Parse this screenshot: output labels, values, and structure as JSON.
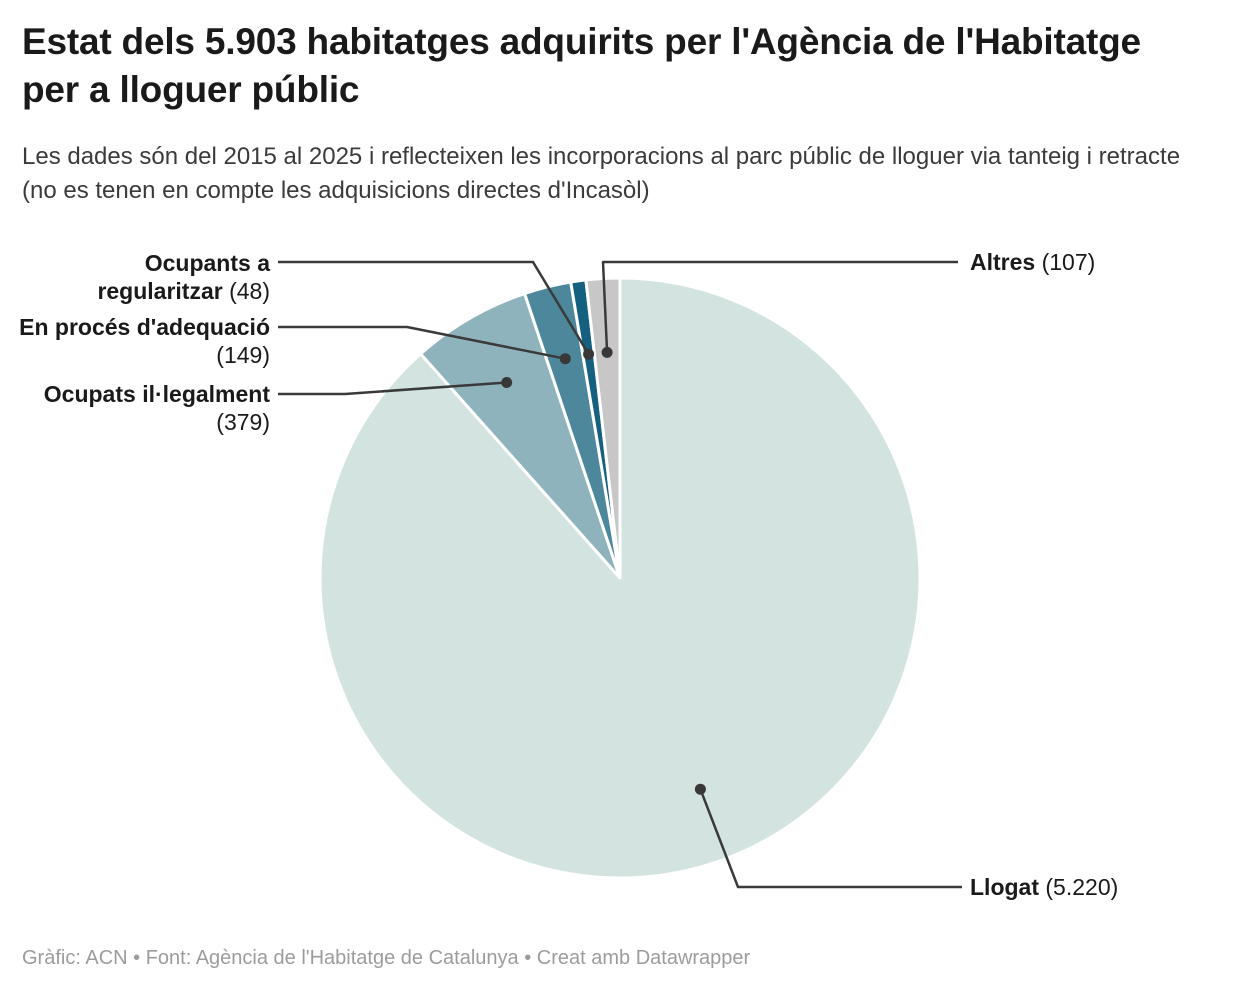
{
  "header": {
    "title": "Estat dels 5.903 habitatges adquirits per l'Agència de l'Habitatge per a lloguer públic",
    "subtitle": "Les dades són del 2015 al 2025 i reflecteixen les incorporacions al parc públic de lloguer via tanteig i retracte (no es tenen en compte les adquisicions directes d'Incasòl)"
  },
  "chart_data": {
    "type": "pie",
    "title": "Estat dels 5.903 habitatges adquirits per l'Agència de l'Habitatge per a lloguer públic",
    "total": 5903,
    "start_angle": "12-oclock",
    "direction": "clockwise",
    "legend_position": "callout-labels-with-leader-lines",
    "slices": [
      {
        "label": "Llogat",
        "value": 5220,
        "value_display": "(5.220)",
        "color": "#d3e3e0"
      },
      {
        "label": "Ocupats il·legalment",
        "value": 379,
        "value_display": "(379)",
        "color": "#8fb3bc"
      },
      {
        "label": "En procés d'adequació",
        "value": 149,
        "value_display": "(149)",
        "color": "#4c879b"
      },
      {
        "label": "Ocupants a regularitzar",
        "value": 48,
        "value_display": "(48)",
        "color": "#15607f"
      },
      {
        "label": "Altres",
        "value": 107,
        "value_display": "(107)",
        "color": "#c7c7c7"
      }
    ],
    "colors": {
      "leader_line": "#3a3a3a",
      "leader_dot": "#383838",
      "slice_gap": "#ffffff"
    }
  },
  "footer": {
    "text": "Gràfic: ACN • Font: Agència de l'Habitatge de Catalunya • Creat amb Datawrapper"
  }
}
